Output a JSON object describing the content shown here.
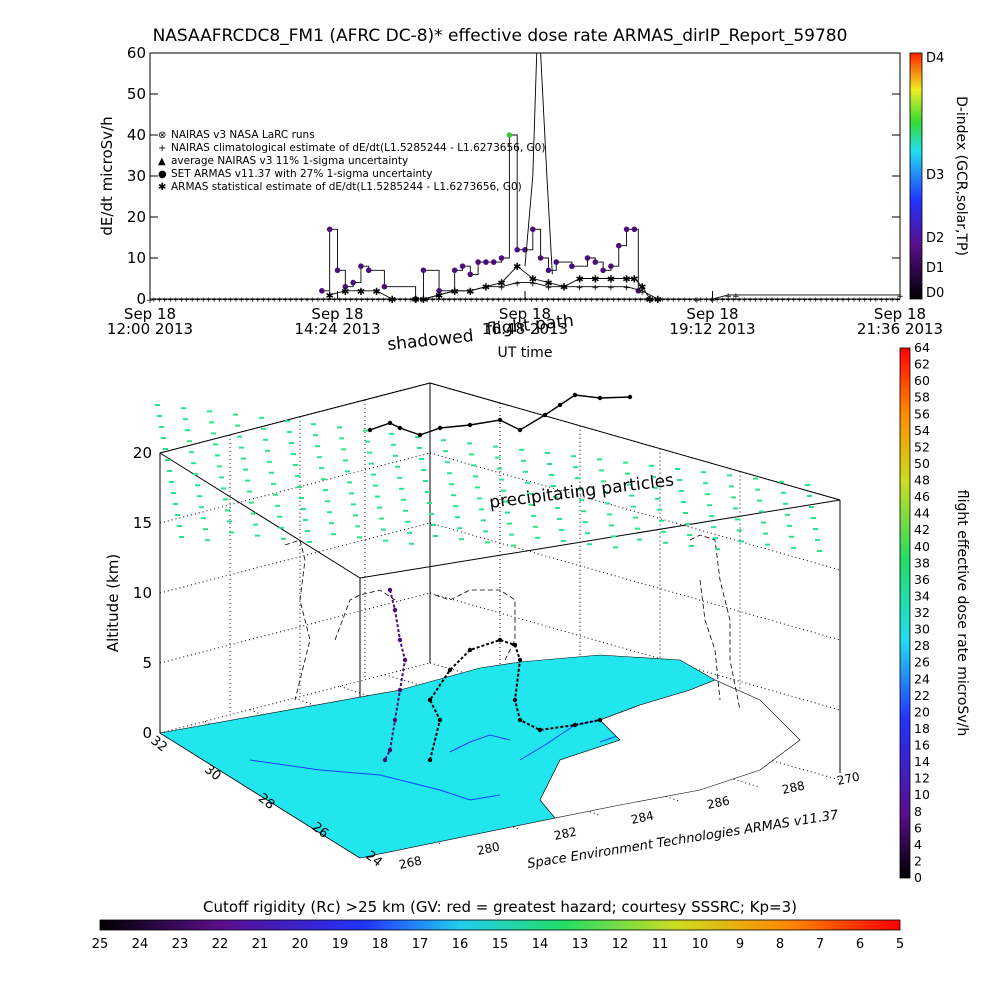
{
  "title": "NASAAFRCDC8_FM1 (AFRC DC-8)* effective dose rate ARMAS_dirIP_Report_59780",
  "chart_data": [
    {
      "type": "line",
      "ylabel": "dE/dt microSv/h",
      "xlabel": "UT time",
      "ylim": [
        0,
        60
      ],
      "yticks": [
        0,
        10,
        20,
        30,
        40,
        50,
        60
      ],
      "xlim_hours": [
        12.0,
        21.6
      ],
      "xticks": [
        {
          "date": "Sep 18",
          "time": "12:00 2013",
          "h": 12.0
        },
        {
          "date": "Sep 18",
          "time": "14:24 2013",
          "h": 14.4
        },
        {
          "date": "Sep 18",
          "time": "16:48 2013",
          "h": 16.8
        },
        {
          "date": "Sep 18",
          "time": "19:12 2013",
          "h": 19.2
        },
        {
          "date": "Sep 18",
          "time": "21:36 2013",
          "h": 21.6
        }
      ],
      "legend": {
        "placement": "upper-left",
        "entries": [
          {
            "marker": "⊗",
            "label": "NAIRAS v3 NASA LaRC runs"
          },
          {
            "marker": "+",
            "label": "NAIRAS climatological estimate of dE/dt(L1.5285244 - L1.6273656, G0)"
          },
          {
            "marker": "▲",
            "label": "average NAIRAS v3 11% 1-sigma uncertainty"
          },
          {
            "marker": "●",
            "label": "SET ARMAS v11.37 with 27% 1-sigma uncertainty",
            "color": "#1e3cff"
          },
          {
            "marker": "✱",
            "label": "ARMAS statistical estimate of dE/dt(L1.5285244 - L1.6273656, G0)"
          }
        ]
      },
      "annotations": [
        "shadowed",
        "flight path"
      ],
      "series": [
        {
          "kind": "armas_measured",
          "x": [
            14.2,
            14.3,
            14.4,
            14.5,
            14.6,
            14.7,
            14.8,
            15.0,
            15.4,
            15.5,
            15.7,
            15.9,
            16.0,
            16.1,
            16.2,
            16.3,
            16.4,
            16.5,
            16.6,
            16.7,
            16.8,
            16.9,
            17.0,
            17.1,
            17.2,
            17.4,
            17.6,
            17.7,
            17.8,
            17.9,
            18.0,
            18.1,
            18.2,
            18.25
          ],
          "y": [
            2,
            17,
            7,
            3,
            4,
            8,
            7,
            3,
            0,
            7,
            2,
            7,
            8,
            6,
            9,
            9,
            9,
            10,
            40,
            12,
            12,
            17,
            10,
            7,
            9,
            8,
            10,
            9,
            7,
            8,
            13,
            17,
            17,
            2
          ]
        },
        {
          "kind": "armas_statistical_estimate",
          "x": [
            14.3,
            14.5,
            14.7,
            14.9,
            15.1,
            15.4,
            15.5,
            15.7,
            15.9,
            16.1,
            16.3,
            16.5,
            16.7,
            16.9,
            17.1,
            17.3,
            17.5,
            17.7,
            17.9,
            18.1,
            18.2,
            18.3,
            18.4,
            18.5
          ],
          "y": [
            1,
            2,
            2,
            2,
            0,
            0,
            0,
            1,
            2,
            2,
            3,
            4,
            8,
            5,
            4,
            3,
            5,
            5,
            5,
            5,
            5,
            3,
            0,
            0
          ]
        },
        {
          "kind": "nairas_climatological",
          "x": [
            12.0,
            15.4,
            15.5,
            15.7,
            15.9,
            16.1,
            16.3,
            16.5,
            16.7,
            16.9,
            17.1,
            17.3,
            17.5,
            17.7,
            17.9,
            18.1,
            18.3,
            18.5,
            19.0,
            19.2,
            19.4,
            19.5,
            21.6
          ],
          "y": [
            0,
            0,
            0,
            1,
            2,
            2,
            3,
            3,
            4,
            4,
            3,
            3,
            3,
            3,
            3,
            3,
            2,
            0,
            0,
            0,
            1,
            1,
            1
          ]
        },
        {
          "kind": "spike_line",
          "x": [
            16.8,
            16.9,
            16.95,
            17.0,
            17.08,
            17.15
          ],
          "y": [
            8,
            30,
            60,
            60,
            30,
            6
          ]
        }
      ],
      "dindex_colorbar": {
        "label": "D-index (GCR,solar,TP)",
        "ticks": [
          "D0",
          "D1",
          "D2",
          "D3",
          "D4"
        ]
      }
    },
    {
      "type": "scatter",
      "zlabel": "Altitude (km)",
      "zticks": [
        0,
        5,
        10,
        15,
        20
      ],
      "lon_ticks": [
        268,
        270,
        280,
        282,
        284,
        286,
        288
      ],
      "lon_ticks_visible": [
        "268",
        "270",
        "280",
        "282",
        "284",
        "286",
        "288"
      ],
      "lat_ticks": [
        "24",
        "26",
        "28",
        "30",
        "32"
      ],
      "annotations": [
        "precipitating particles"
      ],
      "credit": "Space Environment Technologies ARMAS v11.37",
      "dose_colorbar": {
        "label": "flight effective dose rate microSv/h",
        "ticks": [
          0,
          2,
          4,
          6,
          8,
          10,
          12,
          14,
          16,
          18,
          20,
          22,
          24,
          26,
          28,
          30,
          32,
          34,
          36,
          38,
          40,
          42,
          44,
          46,
          48,
          50,
          52,
          54,
          56,
          58,
          60,
          62,
          64
        ]
      }
    }
  ],
  "cutoff_colorbar": {
    "label": "Cutoff rigidity (Rc) >25 km (GV: red = greatest hazard; courtesy SSSRC; Kp=3)",
    "ticks": [
      "25",
      "24",
      "23",
      "22",
      "21",
      "20",
      "19",
      "18",
      "17",
      "16",
      "15",
      "14",
      "13",
      "12",
      "11",
      "10",
      "9",
      "8",
      "7",
      "6",
      "5"
    ]
  },
  "colors": {
    "ocean": "#22e6ee",
    "particles": "#22e68a",
    "flight_path": "#000000",
    "measurement_marker": "#4b0d7a",
    "spike_marker": "#33cc33"
  }
}
